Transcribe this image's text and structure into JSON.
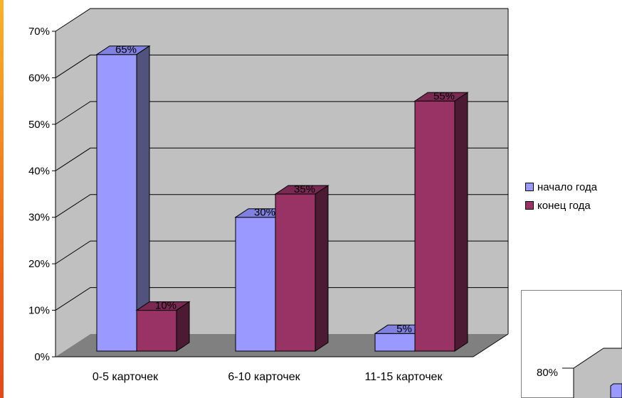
{
  "chart_data": {
    "type": "bar",
    "categories": [
      "0-5 карточек",
      "6-10 карточек",
      "11-15 карточек"
    ],
    "series": [
      {
        "name": "начало года",
        "values": [
          65,
          30,
          5
        ],
        "color": "#9999ff",
        "side_color": "#52527f",
        "top_color": "#8080e0"
      },
      {
        "name": "конец года",
        "values": [
          10,
          35,
          55
        ],
        "color": "#993366",
        "side_color": "#4d1a33",
        "top_color": "#7a2952"
      }
    ],
    "data_labels": [
      [
        "65%",
        "30%",
        "5%"
      ],
      [
        "10%",
        "35%",
        "55%"
      ]
    ],
    "y_ticks": [
      "0%",
      "10%",
      "20%",
      "30%",
      "40%",
      "50%",
      "60%",
      "70%"
    ],
    "ylim": [
      0,
      70
    ],
    "grid": true,
    "wall_color": "#c0c0c0",
    "floor_color": "#808080",
    "legend": [
      "начало года",
      "конец года"
    ],
    "legend_placement": "right",
    "inset_tick": "80%"
  }
}
